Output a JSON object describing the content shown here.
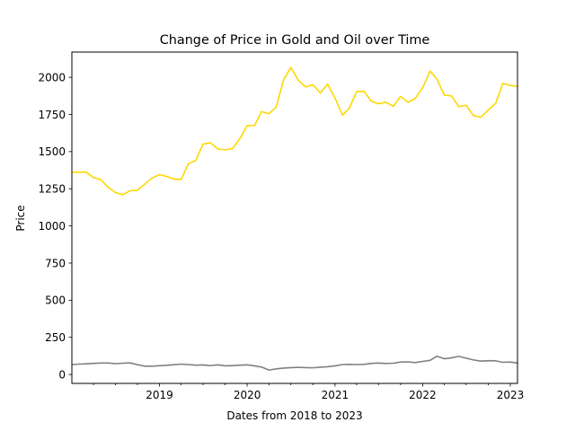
{
  "chart_data": {
    "type": "line",
    "title": "Change of Price in Gold and Oil over Time",
    "xlabel": "Dates from 2018 to 2023",
    "ylabel": "Price",
    "x_range": [
      "2018-01-01",
      "2023-01-31"
    ],
    "ylim": [
      -60,
      2170
    ],
    "x_ticks": [
      {
        "date": "2019-01-01",
        "label": "2019"
      },
      {
        "date": "2020-01-01",
        "label": "2020"
      },
      {
        "date": "2021-01-01",
        "label": "2021"
      },
      {
        "date": "2022-01-01",
        "label": "2022"
      },
      {
        "date": "2023-01-01",
        "label": "2023"
      }
    ],
    "y_ticks": [
      0,
      250,
      500,
      750,
      1000,
      1250,
      1500,
      1750,
      2000
    ],
    "grid": false,
    "legend": "none",
    "x": [
      "2018-01-01",
      "2018-02-01",
      "2018-03-01",
      "2018-04-01",
      "2018-05-01",
      "2018-06-01",
      "2018-07-01",
      "2018-08-01",
      "2018-09-01",
      "2018-10-01",
      "2018-11-01",
      "2018-12-01",
      "2019-01-01",
      "2019-02-01",
      "2019-03-01",
      "2019-04-01",
      "2019-05-01",
      "2019-06-01",
      "2019-07-01",
      "2019-08-01",
      "2019-09-01",
      "2019-10-01",
      "2019-11-01",
      "2019-12-01",
      "2020-01-01",
      "2020-02-01",
      "2020-03-01",
      "2020-04-01",
      "2020-05-01",
      "2020-06-01",
      "2020-07-01",
      "2020-08-01",
      "2020-09-01",
      "2020-10-01",
      "2020-11-01",
      "2020-12-01",
      "2021-01-01",
      "2021-02-01",
      "2021-03-01",
      "2021-04-01",
      "2021-05-01",
      "2021-06-01",
      "2021-07-01",
      "2021-08-01",
      "2021-09-01",
      "2021-10-01",
      "2021-11-01",
      "2021-12-01",
      "2022-01-01",
      "2022-02-01",
      "2022-03-01",
      "2022-04-01",
      "2022-05-01",
      "2022-06-01",
      "2022-07-01",
      "2022-08-01",
      "2022-09-01",
      "2022-10-01",
      "2022-11-01",
      "2022-12-01",
      "2023-01-01",
      "2023-01-31"
    ],
    "series": [
      {
        "color": "#ffd700",
        "values": [
          1360,
          1362,
          1362,
          1325,
          1312,
          1260,
          1225,
          1210,
          1237,
          1240,
          1282,
          1322,
          1345,
          1332,
          1316,
          1312,
          1418,
          1440,
          1550,
          1560,
          1518,
          1512,
          1520,
          1586,
          1674,
          1676,
          1770,
          1755,
          1800,
          1985,
          2067,
          1980,
          1935,
          1950,
          1895,
          1955,
          1860,
          1745,
          1792,
          1903,
          1907,
          1840,
          1822,
          1832,
          1805,
          1872,
          1832,
          1858,
          1930,
          2042,
          1990,
          1880,
          1875,
          1802,
          1812,
          1742,
          1732,
          1780,
          1825,
          1960,
          1945,
          1940
        ]
      },
      {
        "color": "#808080",
        "values": [
          67,
          70,
          72,
          75,
          77,
          77,
          73,
          76,
          78,
          66,
          56,
          56,
          59,
          62,
          66,
          70,
          67,
          63,
          64,
          60,
          65,
          58,
          60,
          63,
          65,
          58,
          50,
          30,
          38,
          43,
          46,
          48,
          46,
          45,
          49,
          52,
          58,
          67,
          68,
          67,
          68,
          75,
          77,
          74,
          76,
          84,
          85,
          80,
          88,
          95,
          123,
          106,
          112,
          122,
          110,
          98,
          90,
          93,
          92,
          82,
          84,
          77
        ]
      }
    ]
  }
}
